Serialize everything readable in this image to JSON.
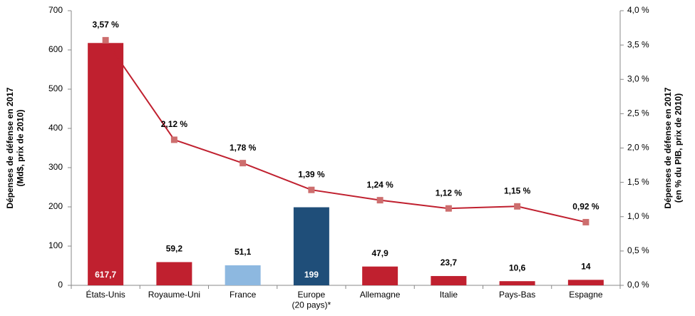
{
  "chart_data": {
    "type": "bar_line",
    "y_label": "Dépenses de défense en 2017\n(Md$, prix de 2010)",
    "y2_label": "Dépenses de défense en 2017\n(en % du PIB, prix de 2010)",
    "categories": [
      "États-Unis",
      "Royaume-Uni",
      "France",
      "Europe\n(20 pays)*",
      "Allemagne",
      "Italie",
      "Pays-Bas",
      "Espagne"
    ],
    "series": [
      {
        "type": "bar",
        "colors": [
          "#c0202f",
          "#c0202f",
          "#8db8e0",
          "#1f4e79",
          "#c0202f",
          "#c0202f",
          "#c0202f",
          "#c0202f"
        ],
        "values": [
          617.7,
          59.2,
          51.1,
          199,
          47.9,
          23.7,
          10.6,
          14
        ],
        "value_labels": [
          "617,7",
          "59,2",
          "51,1",
          "199",
          "47,9",
          "23,7",
          "10,6",
          "14"
        ]
      },
      {
        "type": "line",
        "axis": "y2",
        "color": "#c0202f",
        "marker_color": "#cd6e6e",
        "values": [
          3.57,
          2.12,
          1.78,
          1.39,
          1.24,
          1.12,
          1.15,
          0.92
        ],
        "value_labels": [
          "3,57 %",
          "2,12 %",
          "1,78 %",
          "1,39 %",
          "1,24 %",
          "1,12 %",
          "1,15 %",
          "0,92 %"
        ]
      }
    ],
    "ylim": [
      0,
      700
    ],
    "yticks": [
      0,
      100,
      200,
      300,
      400,
      500,
      600,
      700
    ],
    "y2lim": [
      0,
      4.0
    ],
    "y2ticks": [
      {
        "value": 0,
        "label": "0,0 %"
      },
      {
        "value": 0.5,
        "label": "0,5 %"
      },
      {
        "value": 1.0,
        "label": "1,0 %"
      },
      {
        "value": 1.5,
        "label": "1,5 %"
      },
      {
        "value": 2.0,
        "label": "2,0 %"
      },
      {
        "value": 2.5,
        "label": "2,5 %"
      },
      {
        "value": 3.0,
        "label": "3,0 %"
      },
      {
        "value": 3.5,
        "label": "3,5 %"
      },
      {
        "value": 4.0,
        "label": "4,0 %"
      }
    ],
    "axis_label_color": "#c0202f"
  }
}
